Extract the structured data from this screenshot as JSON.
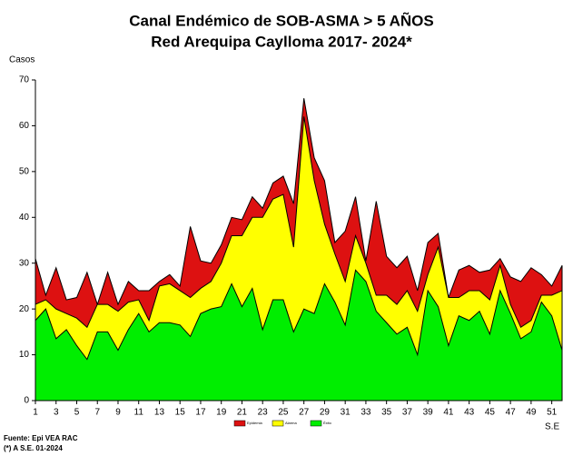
{
  "chart_data": {
    "type": "area",
    "title": "Canal Endémico de SOB-ASMA > 5 AÑOS",
    "subtitle": "Red Arequipa Caylloma 2017- 2024*",
    "y_label": "Casos",
    "x_label": "S.E",
    "source": "Fuente: Epi VEA RAC",
    "note": "(*) A S.E. 01-2024",
    "x": [
      1,
      2,
      3,
      4,
      5,
      6,
      7,
      8,
      9,
      10,
      11,
      12,
      13,
      14,
      15,
      16,
      17,
      18,
      19,
      20,
      21,
      22,
      23,
      24,
      25,
      26,
      27,
      28,
      29,
      30,
      31,
      32,
      33,
      34,
      35,
      36,
      37,
      38,
      39,
      40,
      41,
      42,
      43,
      44,
      45,
      46,
      47,
      48,
      49,
      50,
      51,
      52
    ],
    "xlim": [
      1,
      52
    ],
    "xticks": [
      1,
      3,
      5,
      7,
      9,
      11,
      13,
      15,
      17,
      19,
      21,
      23,
      25,
      27,
      29,
      31,
      33,
      35,
      37,
      39,
      41,
      43,
      45,
      47,
      49,
      51
    ],
    "ylim": [
      0,
      70
    ],
    "yticks": [
      0,
      10,
      20,
      30,
      40,
      50,
      60,
      70
    ],
    "grid": false,
    "legend": "bottom",
    "series": [
      {
        "name": "Epidemia",
        "color": "#dd1111",
        "values": [
          31,
          23,
          29,
          22,
          22.5,
          28,
          21,
          28,
          21,
          26,
          24,
          24,
          26,
          27.5,
          25,
          38,
          30.5,
          30,
          34,
          40,
          39.5,
          44.5,
          42,
          47.5,
          49,
          43,
          66,
          53,
          48,
          34.5,
          37,
          44.5,
          30.5,
          43.5,
          31.5,
          29,
          31.5,
          24,
          34.5,
          36.5,
          22.5,
          28.5,
          29.5,
          28,
          28.5,
          31,
          27,
          26,
          29,
          27.5,
          25,
          29.5
        ]
      },
      {
        "name": "Alarma",
        "color": "#ffff00",
        "values": [
          21,
          22,
          20,
          19,
          18,
          16,
          21,
          21,
          19.5,
          21.5,
          22,
          17.5,
          25,
          25.5,
          24,
          22.5,
          24.5,
          26,
          30,
          36,
          36,
          40,
          40,
          44,
          45,
          33.5,
          62,
          48,
          38.5,
          32,
          26,
          36,
          30,
          23,
          23,
          21,
          24,
          19.5,
          27.5,
          33.5,
          22.5,
          22.5,
          24,
          24,
          22,
          29.5,
          21,
          16,
          17.5,
          23,
          23,
          24
        ]
      },
      {
        "name": "Éxito",
        "color": "#00ee00",
        "values": [
          17.5,
          20,
          13.5,
          15.5,
          12,
          9,
          15,
          15,
          11,
          15.5,
          19,
          15,
          17,
          17,
          16.5,
          14,
          19,
          20,
          20.5,
          25.5,
          20.5,
          24.5,
          15.5,
          22,
          22,
          15,
          20,
          19,
          25.5,
          21.5,
          16.5,
          28.5,
          26,
          19.5,
          17,
          14.5,
          16,
          10,
          24,
          20.5,
          12,
          18.5,
          17.5,
          19.5,
          14.5,
          24,
          19,
          13.5,
          15,
          21.5,
          18.5,
          11
        ]
      }
    ]
  }
}
